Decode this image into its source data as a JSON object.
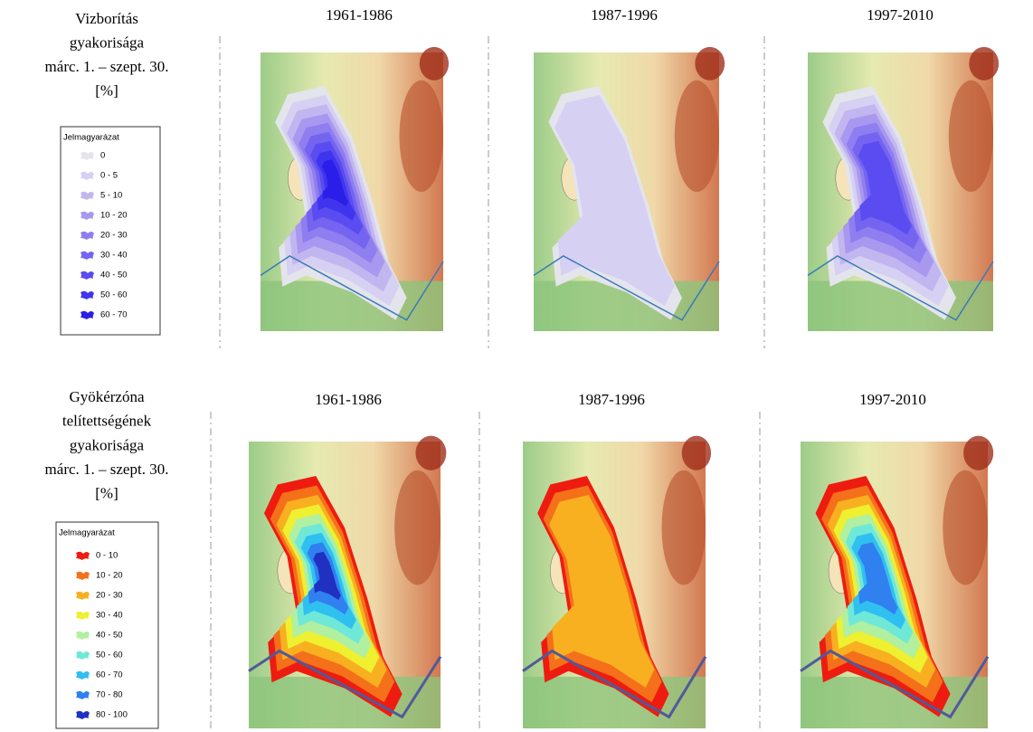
{
  "rows": [
    {
      "label_lines": [
        "Vizborítás",
        "gyakorisága",
        "márc. 1. – szept. 30.",
        "[%]"
      ],
      "legend": {
        "title": "Jelmagyarázat",
        "items": [
          {
            "label": "0",
            "color": "#e4e4ec"
          },
          {
            "label": "0 - 5",
            "color": "#d6d0f2"
          },
          {
            "label": "5 - 10",
            "color": "#c2b6f0"
          },
          {
            "label": "10 - 20",
            "color": "#a898ef"
          },
          {
            "label": "20 - 30",
            "color": "#8e7ef0"
          },
          {
            "label": "30 - 40",
            "color": "#7464f0"
          },
          {
            "label": "40 - 50",
            "color": "#5a4cf0"
          },
          {
            "label": "50 - 60",
            "color": "#4134ee"
          },
          {
            "label": "60 - 70",
            "color": "#2a1ee8"
          }
        ]
      },
      "panels": [
        "1961-1986",
        "1987-1996",
        "1997-2010"
      ]
    },
    {
      "label_lines": [
        "Gyökérzóna",
        "telítettségének",
        "gyakorisága",
        "márc. 1. – szept. 30.",
        "[%]"
      ],
      "legend": {
        "title": "Jelmagyarázat",
        "items": [
          {
            "label": "0 - 10",
            "color": "#ee1c10"
          },
          {
            "label": "10 - 20",
            "color": "#f4701a"
          },
          {
            "label": "20 - 30",
            "color": "#f8b020"
          },
          {
            "label": "30 - 40",
            "color": "#eef030"
          },
          {
            "label": "40 - 50",
            "color": "#b0f0a0"
          },
          {
            "label": "50 - 60",
            "color": "#70e8d8"
          },
          {
            "label": "60 - 70",
            "color": "#30c0f0"
          },
          {
            "label": "70 - 80",
            "color": "#3080f0"
          },
          {
            "label": "80 - 100",
            "color": "#2030c0"
          }
        ]
      },
      "panels": [
        "1961-1986",
        "1987-1996",
        "1997-2010"
      ]
    }
  ]
}
